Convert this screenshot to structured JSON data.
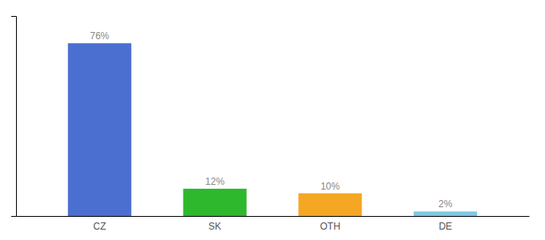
{
  "chart_data": {
    "type": "bar",
    "categories": [
      "CZ",
      "SK",
      "OTH",
      "DE"
    ],
    "values": [
      76,
      12,
      10,
      2
    ],
    "value_labels": [
      "76%",
      "12%",
      "10%",
      "2%"
    ],
    "colors": [
      "#4b6fd1",
      "#2db82d",
      "#f5a623",
      "#7ec8e3"
    ],
    "ylim": [
      0,
      88
    ],
    "data_labels": true,
    "tick_labels": "x"
  }
}
